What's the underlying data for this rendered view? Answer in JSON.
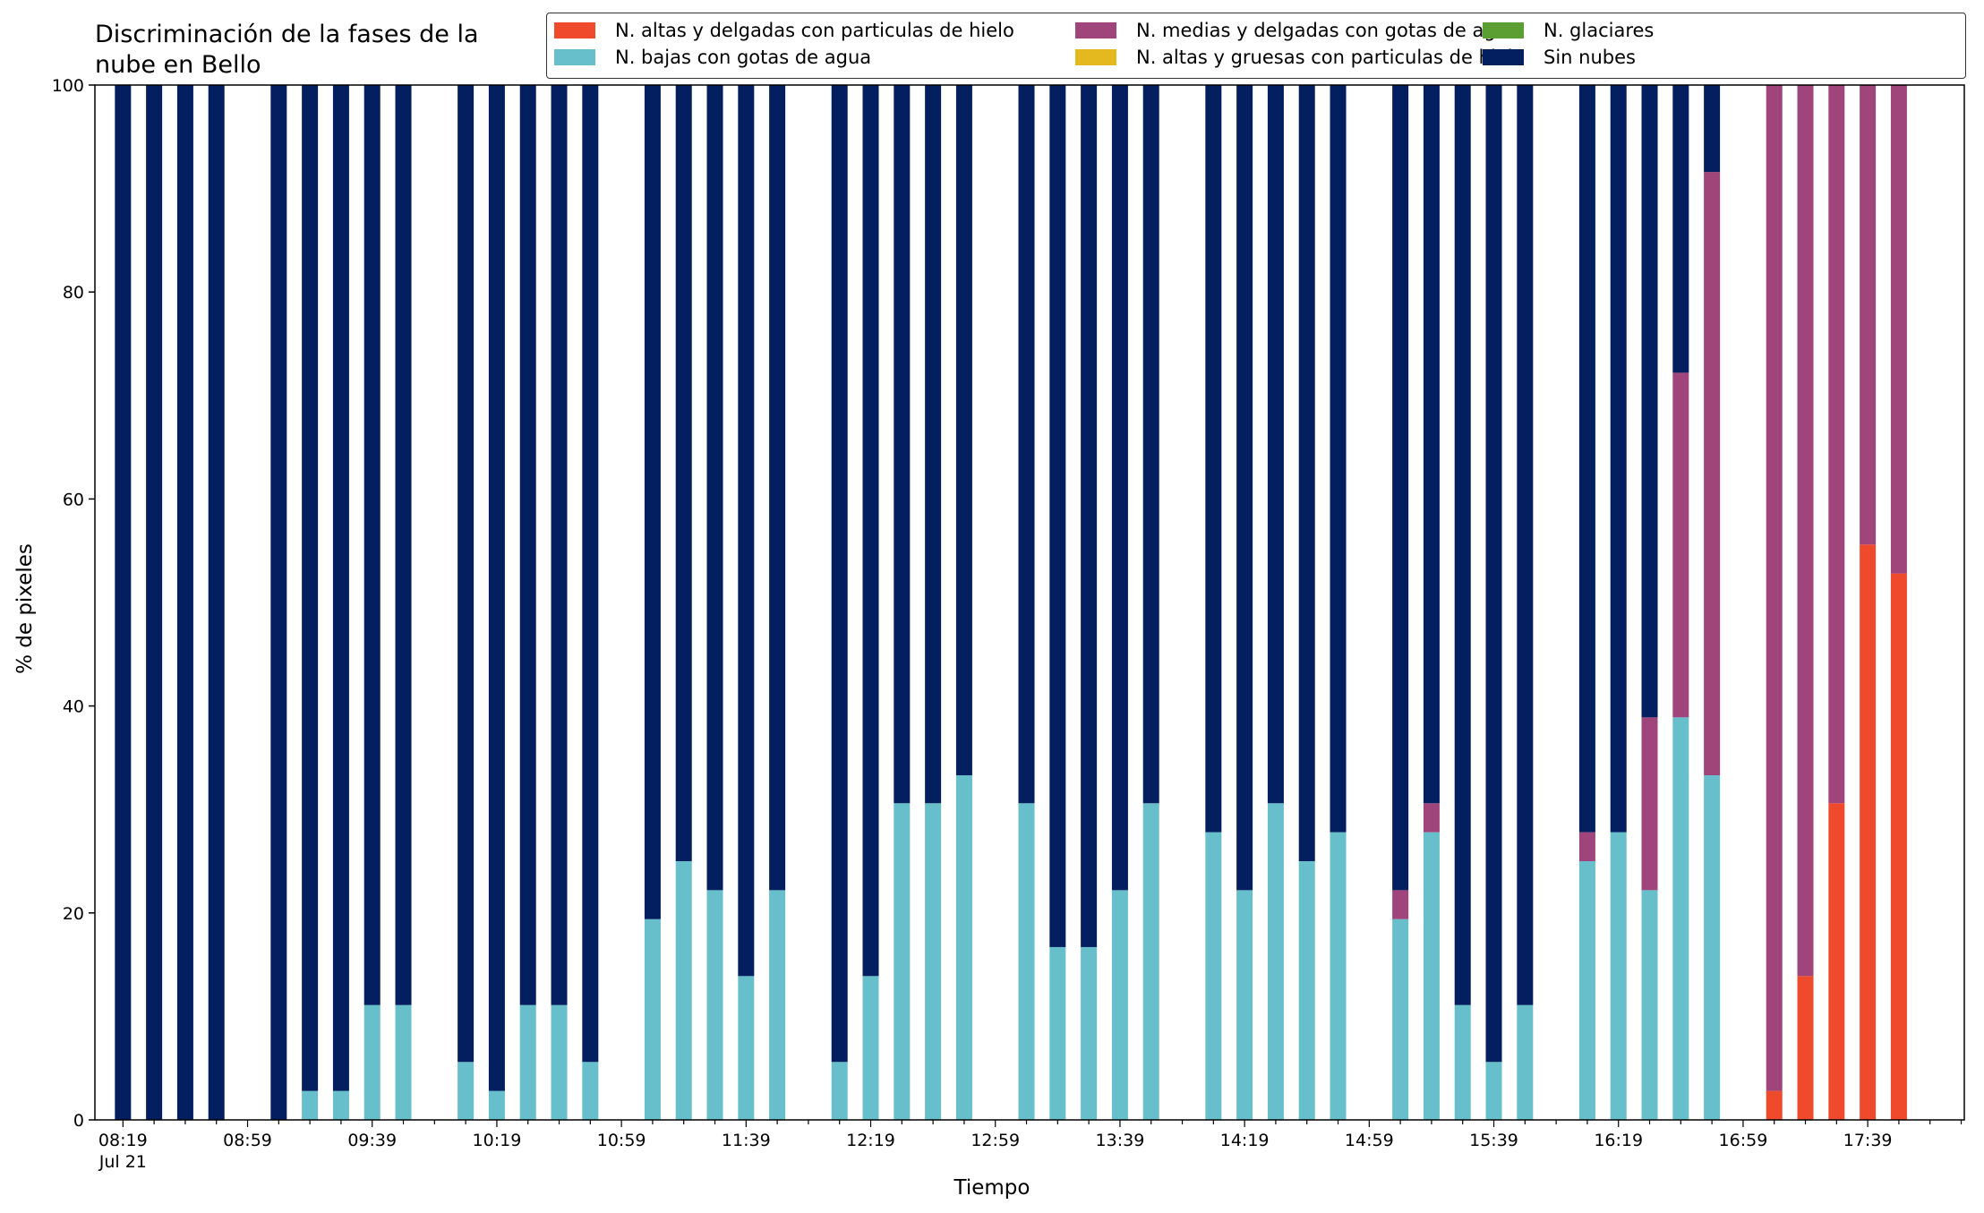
{
  "chart_data": {
    "type": "bar",
    "stacked": true,
    "title": "Discriminación de la fases de la\nnube en Bello",
    "xlabel": "Tiempo",
    "ylabel": "% de pixeles",
    "ylim": [
      0,
      100
    ],
    "yticks": [
      0,
      20,
      40,
      60,
      80,
      100
    ],
    "x_minutes_range": [
      490,
      1090
    ],
    "xticks_major": [
      {
        "m": 499,
        "label": "08:19",
        "sub": "Jul 21"
      },
      {
        "m": 539,
        "label": "08:59"
      },
      {
        "m": 579,
        "label": "09:39"
      },
      {
        "m": 619,
        "label": "10:19"
      },
      {
        "m": 659,
        "label": "10:59"
      },
      {
        "m": 699,
        "label": "11:39"
      },
      {
        "m": 739,
        "label": "12:19"
      },
      {
        "m": 779,
        "label": "12:59"
      },
      {
        "m": 819,
        "label": "13:39"
      },
      {
        "m": 859,
        "label": "14:19"
      },
      {
        "m": 899,
        "label": "14:59"
      },
      {
        "m": 939,
        "label": "15:39"
      },
      {
        "m": 979,
        "label": "16:19"
      },
      {
        "m": 1019,
        "label": "16:59"
      },
      {
        "m": 1059,
        "label": "17:39"
      }
    ],
    "legend": {
      "placement": "top-right",
      "columns": 3
    },
    "series": [
      {
        "name": "N. altas y delgadas con particulas de hielo",
        "color": "#ef4a2c"
      },
      {
        "name": "N. altas y gruesas con particulas de hielo",
        "color": "#e4b81f"
      },
      {
        "name": "N. glaciares",
        "color": "#5b9e32"
      },
      {
        "name": "N. bajas con gotas de agua",
        "color": "#66bfcb"
      },
      {
        "name": "N. medias y delgadas con gotas de agua",
        "color": "#a0457c"
      },
      {
        "name": "Sin nubes",
        "color": "#031f5f"
      }
    ],
    "legend_order": [
      0,
      3,
      4,
      1,
      2,
      5
    ],
    "bars": [
      {
        "t": "08:19",
        "low": 0,
        "mid": 0,
        "high_thin": 0,
        "clear": 100
      },
      {
        "t": "08:29",
        "low": 0,
        "mid": 0,
        "high_thin": 0,
        "clear": 100
      },
      {
        "t": "08:39",
        "low": 0,
        "mid": 0,
        "high_thin": 0,
        "clear": 100
      },
      {
        "t": "08:49",
        "low": 0,
        "mid": 0,
        "high_thin": 0,
        "clear": 100
      },
      {
        "t": "09:09",
        "low": 0,
        "mid": 0,
        "high_thin": 0,
        "clear": 100
      },
      {
        "t": "09:19",
        "low": 2.8,
        "mid": 0,
        "high_thin": 0,
        "clear": 97.2
      },
      {
        "t": "09:29",
        "low": 2.8,
        "mid": 0,
        "high_thin": 0,
        "clear": 97.2
      },
      {
        "t": "09:39",
        "low": 11.1,
        "mid": 0,
        "high_thin": 0,
        "clear": 88.9
      },
      {
        "t": "09:49",
        "low": 11.1,
        "mid": 0,
        "high_thin": 0,
        "clear": 88.9
      },
      {
        "t": "10:09",
        "low": 5.6,
        "mid": 0,
        "high_thin": 0,
        "clear": 94.4
      },
      {
        "t": "10:19",
        "low": 2.8,
        "mid": 0,
        "high_thin": 0,
        "clear": 97.2
      },
      {
        "t": "10:29",
        "low": 11.1,
        "mid": 0,
        "high_thin": 0,
        "clear": 88.9
      },
      {
        "t": "10:39",
        "low": 11.1,
        "mid": 0,
        "high_thin": 0,
        "clear": 88.9
      },
      {
        "t": "10:49",
        "low": 5.6,
        "mid": 0,
        "high_thin": 0,
        "clear": 94.4
      },
      {
        "t": "11:09",
        "low": 19.4,
        "mid": 0,
        "high_thin": 0,
        "clear": 80.6
      },
      {
        "t": "11:19",
        "low": 25.0,
        "mid": 0,
        "high_thin": 0,
        "clear": 75.0
      },
      {
        "t": "11:29",
        "low": 22.2,
        "mid": 0,
        "high_thin": 0,
        "clear": 77.8
      },
      {
        "t": "11:39",
        "low": 13.9,
        "mid": 0,
        "high_thin": 0,
        "clear": 86.1
      },
      {
        "t": "11:49",
        "low": 22.2,
        "mid": 0,
        "high_thin": 0,
        "clear": 77.8
      },
      {
        "t": "12:09",
        "low": 5.6,
        "mid": 0,
        "high_thin": 0,
        "clear": 94.4
      },
      {
        "t": "12:19",
        "low": 13.9,
        "mid": 0,
        "high_thin": 0,
        "clear": 86.1
      },
      {
        "t": "12:29",
        "low": 30.6,
        "mid": 0,
        "high_thin": 0,
        "clear": 69.4
      },
      {
        "t": "12:39",
        "low": 30.6,
        "mid": 0,
        "high_thin": 0,
        "clear": 69.4
      },
      {
        "t": "12:49",
        "low": 33.3,
        "mid": 0,
        "high_thin": 0,
        "clear": 66.7
      },
      {
        "t": "13:09",
        "low": 30.6,
        "mid": 0,
        "high_thin": 0,
        "clear": 69.4
      },
      {
        "t": "13:19",
        "low": 16.7,
        "mid": 0,
        "high_thin": 0,
        "clear": 83.3
      },
      {
        "t": "13:29",
        "low": 16.7,
        "mid": 0,
        "high_thin": 0,
        "clear": 83.3
      },
      {
        "t": "13:39",
        "low": 22.2,
        "mid": 0,
        "high_thin": 0,
        "clear": 77.8
      },
      {
        "t": "13:49",
        "low": 30.6,
        "mid": 0,
        "high_thin": 0,
        "clear": 69.4
      },
      {
        "t": "14:09",
        "low": 27.8,
        "mid": 0,
        "high_thin": 0,
        "clear": 72.2
      },
      {
        "t": "14:19",
        "low": 22.2,
        "mid": 0,
        "high_thin": 0,
        "clear": 77.8
      },
      {
        "t": "14:29",
        "low": 30.6,
        "mid": 0,
        "high_thin": 0,
        "clear": 69.4
      },
      {
        "t": "14:39",
        "low": 25.0,
        "mid": 0,
        "high_thin": 0,
        "clear": 75.0
      },
      {
        "t": "14:49",
        "low": 27.8,
        "mid": 0,
        "high_thin": 0,
        "clear": 72.2
      },
      {
        "t": "15:09",
        "low": 19.4,
        "mid": 2.8,
        "high_thin": 0,
        "clear": 77.8
      },
      {
        "t": "15:19",
        "low": 27.8,
        "mid": 2.8,
        "high_thin": 0,
        "clear": 69.4
      },
      {
        "t": "15:29",
        "low": 11.1,
        "mid": 0,
        "high_thin": 0,
        "clear": 88.9
      },
      {
        "t": "15:39",
        "low": 5.6,
        "mid": 0,
        "high_thin": 0,
        "clear": 94.4
      },
      {
        "t": "15:49",
        "low": 11.1,
        "mid": 0,
        "high_thin": 0,
        "clear": 88.9
      },
      {
        "t": "16:09",
        "low": 25.0,
        "mid": 2.8,
        "high_thin": 0,
        "clear": 72.2
      },
      {
        "t": "16:19",
        "low": 27.8,
        "mid": 0,
        "high_thin": 0,
        "clear": 72.2
      },
      {
        "t": "16:29",
        "low": 22.2,
        "mid": 16.7,
        "high_thin": 0,
        "clear": 61.1
      },
      {
        "t": "16:39",
        "low": 38.9,
        "mid": 33.3,
        "high_thin": 0,
        "clear": 27.8
      },
      {
        "t": "16:49",
        "low": 33.3,
        "mid": 58.3,
        "high_thin": 0,
        "clear": 8.4
      },
      {
        "t": "17:09",
        "low": 0,
        "mid": 97.2,
        "high_thin": 2.8,
        "clear": 0
      },
      {
        "t": "17:19",
        "low": 0,
        "mid": 86.1,
        "high_thin": 13.9,
        "clear": 0
      },
      {
        "t": "17:29",
        "low": 0,
        "mid": 69.4,
        "high_thin": 30.6,
        "clear": 0
      },
      {
        "t": "17:39",
        "low": 0,
        "mid": 44.4,
        "high_thin": 55.6,
        "clear": 0
      },
      {
        "t": "17:49",
        "low": 0,
        "mid": 47.2,
        "high_thin": 52.8,
        "clear": 0
      }
    ]
  }
}
